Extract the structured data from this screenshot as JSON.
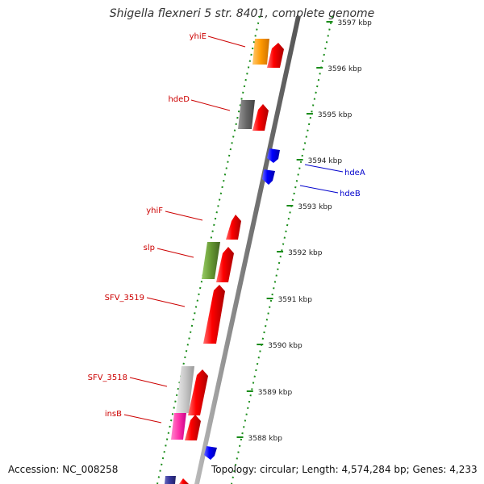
{
  "title": "Shigella flexneri 5 str. 8401, complete genome",
  "footer": {
    "accession_label": "Accession: NC_008258",
    "topology_label": "Topology: circular; Length: 4,574,284 bp; Genes: 4,233"
  },
  "ruler_ticks": [
    {
      "label": "3597 kbp",
      "kbp": 3597
    },
    {
      "label": "3596 kbp",
      "kbp": 3596
    },
    {
      "label": "3595 kbp",
      "kbp": 3595
    },
    {
      "label": "3594 kbp",
      "kbp": 3594
    },
    {
      "label": "3593 kbp",
      "kbp": 3593
    },
    {
      "label": "3592 kbp",
      "kbp": 3592
    },
    {
      "label": "3591 kbp",
      "kbp": 3591
    },
    {
      "label": "3590 kbp",
      "kbp": 3590
    },
    {
      "label": "3589 kbp",
      "kbp": 3589
    },
    {
      "label": "3588 kbp",
      "kbp": 3588
    }
  ],
  "gene_labels": [
    {
      "name": "yhiE",
      "strand": "forward",
      "color": "#cc0000"
    },
    {
      "name": "hdeD",
      "strand": "forward",
      "color": "#cc0000"
    },
    {
      "name": "hdeA",
      "strand": "reverse",
      "color": "#0000cc"
    },
    {
      "name": "hdeB",
      "strand": "reverse",
      "color": "#0000cc"
    },
    {
      "name": "yhiF",
      "strand": "forward",
      "color": "#cc0000"
    },
    {
      "name": "slp",
      "strand": "forward",
      "color": "#cc0000"
    },
    {
      "name": "SFV_3519",
      "strand": "forward",
      "color": "#cc0000"
    },
    {
      "name": "SFV_3518",
      "strand": "forward",
      "color": "#cc0000"
    },
    {
      "name": "insB",
      "strand": "forward",
      "color": "#cc0000"
    }
  ],
  "colors": {
    "forward_gene": "#ff0000",
    "reverse_gene": "#0000ff",
    "backbone": "#8a8a8a",
    "dotted_track": "#1a8c1a",
    "tick_mark": "#1a8c1a",
    "cog_orange": "#ff9900",
    "cog_darkgray": "#666666",
    "cog_olive": "#669933",
    "cog_lightgray": "#c8c8c8",
    "cog_magenta": "#ff33aa",
    "cog_purple": "#333399"
  }
}
